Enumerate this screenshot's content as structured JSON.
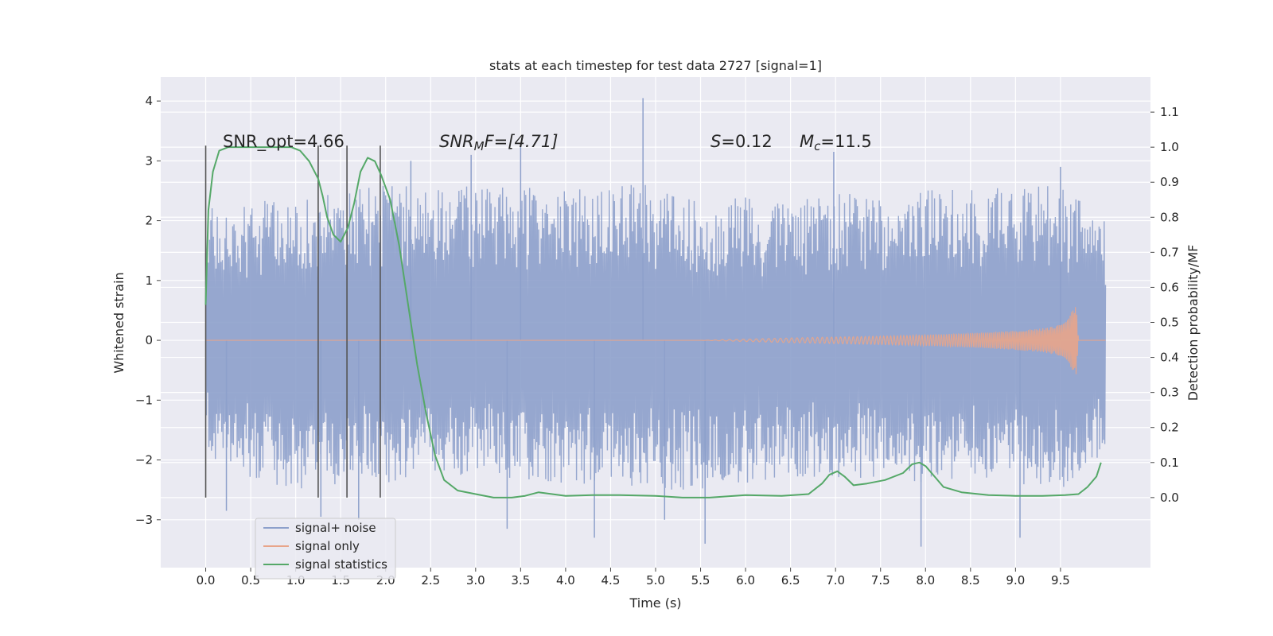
{
  "chart_data": {
    "type": "line",
    "title": "stats at each timestep for test data 2727 [signal=1]",
    "xlabel": "Time (s)",
    "ylabel": "Whitened strain",
    "ylabel_right": "Detection probability/MF",
    "xlim": [
      -0.5,
      10.5
    ],
    "ylim": [
      -3.8,
      4.4
    ],
    "ylim_right": [
      -0.2,
      1.2
    ],
    "grid": true,
    "x_ticks": [
      "0.0",
      "0.5",
      "1.0",
      "1.5",
      "2.0",
      "2.5",
      "3.0",
      "3.5",
      "4.0",
      "4.5",
      "5.0",
      "5.5",
      "6.0",
      "6.5",
      "7.0",
      "7.5",
      "8.0",
      "8.5",
      "9.0",
      "9.5"
    ],
    "y_ticks": [
      "−3",
      "−2",
      "−1",
      "0",
      "1",
      "2",
      "3",
      "4"
    ],
    "y_ticks_right": [
      "0.0",
      "0.1",
      "0.2",
      "0.3",
      "0.4",
      "0.5",
      "0.6",
      "0.7",
      "0.8",
      "0.9",
      "1.0",
      "1.1"
    ],
    "annotations": {
      "snr_opt": "SNR_opt=4.66",
      "snr_mf_sym": "SNR",
      "snr_mf_sub": "M",
      "snr_mf_rest": "F=[4.71]",
      "s_sym": "S",
      "s_rest": "=0.12",
      "mc_sym": "M",
      "mc_sub": "c",
      "mc_rest": "=11.5"
    },
    "legend": {
      "position": "lower-left",
      "entries": [
        "signal+ noise",
        "signal only",
        "signal statistics"
      ]
    },
    "series": [
      {
        "name": "signal+ noise",
        "axis": "left",
        "color": "#8da0cb",
        "envelope": {
          "x": [
            0,
            0.5,
            1.0,
            1.5,
            2.0,
            2.5,
            3.0,
            3.5,
            4.0,
            4.5,
            5.0,
            5.5,
            6.0,
            6.5,
            7.0,
            7.5,
            8.0,
            8.5,
            9.0,
            9.5,
            10.0
          ],
          "upper": [
            2.2,
            2.3,
            2.4,
            2.5,
            2.6,
            2.6,
            2.6,
            2.6,
            2.5,
            2.6,
            2.6,
            2.4,
            2.4,
            2.3,
            2.5,
            2.4,
            2.5,
            2.6,
            2.6,
            2.6,
            2.0
          ],
          "lower": [
            -1.9,
            -2.3,
            -2.5,
            -2.4,
            -2.4,
            -2.2,
            -2.3,
            -2.4,
            -2.4,
            -2.4,
            -2.5,
            -2.5,
            -2.4,
            -2.3,
            -2.3,
            -2.3,
            -2.4,
            -2.4,
            -2.4,
            -2.5,
            -1.9
          ]
        },
        "peaks": [
          {
            "x": 4.86,
            "y": 4.05
          },
          {
            "x": 5.55,
            "y": -3.4
          },
          {
            "x": 7.95,
            "y": -3.45
          },
          {
            "x": 9.05,
            "y": -3.3
          },
          {
            "x": 4.32,
            "y": -3.3
          },
          {
            "x": 3.35,
            "y": -3.15
          },
          {
            "x": 6.98,
            "y": 3.15
          },
          {
            "x": 3.5,
            "y": 3.25
          },
          {
            "x": 2.95,
            "y": 3.1
          },
          {
            "x": 1.7,
            "y": -3.0
          },
          {
            "x": 0.23,
            "y": -2.85
          },
          {
            "x": 5.1,
            "y": -3.0
          },
          {
            "x": 1.28,
            "y": -2.95
          },
          {
            "x": 9.5,
            "y": 2.9
          },
          {
            "x": 2.28,
            "y": 3.0
          }
        ]
      },
      {
        "name": "signal only",
        "axis": "left",
        "color": "#e8a58a",
        "x": [
          0,
          5.5,
          6.5,
          7.5,
          8.0,
          8.5,
          9.0,
          9.3,
          9.5,
          9.6,
          9.65,
          9.67,
          9.7,
          10.0
        ],
        "amplitude": [
          0,
          0,
          0.04,
          0.07,
          0.09,
          0.12,
          0.16,
          0.2,
          0.26,
          0.38,
          0.6,
          0.68,
          0,
          0
        ]
      },
      {
        "name": "signal statistics",
        "axis": "right",
        "color": "#55a868",
        "x": [
          0,
          0.03,
          0.08,
          0.15,
          0.25,
          0.4,
          0.6,
          0.8,
          0.95,
          1.05,
          1.15,
          1.25,
          1.3,
          1.35,
          1.42,
          1.5,
          1.58,
          1.65,
          1.72,
          1.8,
          1.88,
          1.95,
          2.05,
          2.15,
          2.25,
          2.35,
          2.45,
          2.55,
          2.65,
          2.8,
          3.0,
          3.2,
          3.4,
          3.55,
          3.7,
          3.85,
          4.0,
          4.3,
          4.6,
          5.0,
          5.3,
          5.6,
          6.0,
          6.4,
          6.7,
          6.85,
          6.93,
          7.02,
          7.1,
          7.2,
          7.35,
          7.55,
          7.75,
          7.85,
          7.93,
          8.0,
          8.1,
          8.2,
          8.4,
          8.7,
          9.0,
          9.3,
          9.55,
          9.7,
          9.8,
          9.9,
          9.95
        ],
        "y": [
          0.55,
          0.82,
          0.93,
          0.99,
          1.0,
          1.0,
          1.0,
          1.0,
          1.0,
          0.99,
          0.96,
          0.91,
          0.86,
          0.8,
          0.75,
          0.73,
          0.77,
          0.84,
          0.93,
          0.97,
          0.96,
          0.92,
          0.85,
          0.72,
          0.55,
          0.38,
          0.24,
          0.12,
          0.05,
          0.02,
          0.01,
          0.0,
          0.0,
          0.005,
          0.015,
          0.01,
          0.005,
          0.007,
          0.007,
          0.005,
          0.0,
          0.0,
          0.007,
          0.005,
          0.01,
          0.04,
          0.065,
          0.075,
          0.06,
          0.035,
          0.04,
          0.05,
          0.07,
          0.095,
          0.1,
          0.09,
          0.06,
          0.03,
          0.015,
          0.007,
          0.005,
          0.005,
          0.007,
          0.01,
          0.03,
          0.06,
          0.1
        ]
      }
    ],
    "vertical_markers": [
      {
        "x": 0.0,
        "y_from": 0.0,
        "y_to": 1.0
      },
      {
        "x": 1.25,
        "y_from": 0.0,
        "y_to": 1.0
      },
      {
        "x": 1.57,
        "y_from": 0.0,
        "y_to": 1.0
      },
      {
        "x": 1.94,
        "y_from": 0.0,
        "y_to": 1.0
      }
    ]
  }
}
